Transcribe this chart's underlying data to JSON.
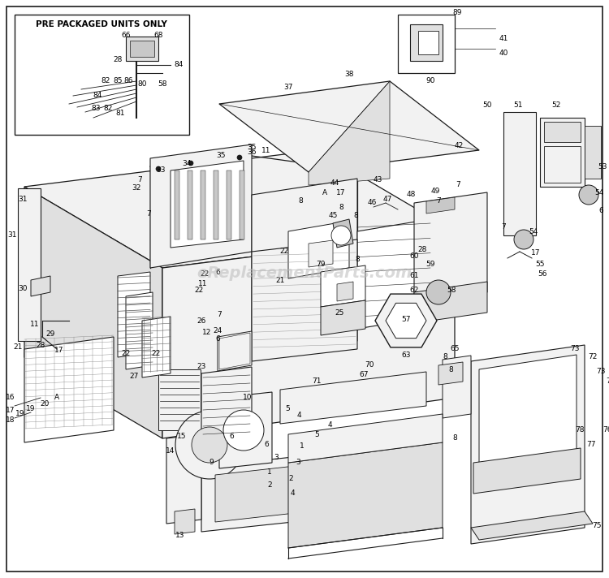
{
  "bg_color": "#ffffff",
  "border_color": "#000000",
  "watermark_text": "eReplacementParts.com",
  "watermark_color": "#bbbbbb",
  "watermark_fontsize": 14,
  "inset_label": "PRE PACKAGED UNITS ONLY",
  "fig_width": 7.5,
  "fig_height": 7.12,
  "dpi": 100,
  "line_color": "#1a1a1a",
  "fill_light": "#f2f2f2",
  "fill_mid": "#e0e0e0",
  "fill_dark": "#c8c8c8",
  "fill_black": "#1a1a1a",
  "lw_main": 0.9,
  "lw_thin": 0.5,
  "lw_thick": 1.3
}
